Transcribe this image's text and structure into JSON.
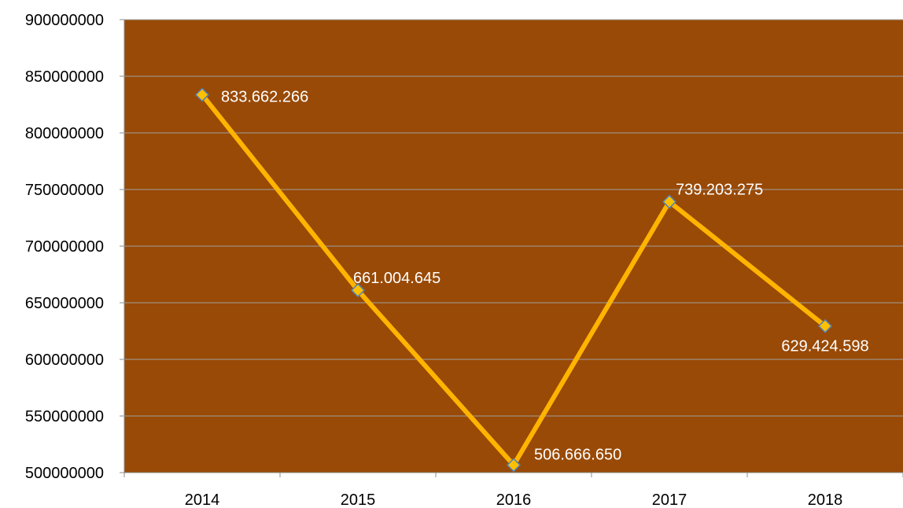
{
  "chart_data": {
    "type": "line",
    "categories": [
      "2014",
      "2015",
      "2016",
      "2017",
      "2018"
    ],
    "values": [
      833662266,
      661004645,
      506666650,
      739203275,
      629424598
    ],
    "data_labels": [
      "833.662.266",
      "661.004.645",
      "506.666.650",
      "739.203.275",
      "629.424.598"
    ],
    "y_ticks": [
      "500000000",
      "550000000",
      "600000000",
      "650000000",
      "700000000",
      "750000000",
      "800000000",
      "850000000",
      "900000000"
    ],
    "ylim": [
      500000000,
      900000000
    ],
    "title": "",
    "xlabel": "",
    "ylabel": "",
    "grid": true,
    "legend": "none"
  },
  "colors": {
    "plot_background": "#994a06",
    "gridline": "#a0a0a0",
    "axis": "#8c8c8c",
    "line": "#ffb400",
    "marker_fill": "#ffc000",
    "marker_stroke": "#4f81bd"
  }
}
